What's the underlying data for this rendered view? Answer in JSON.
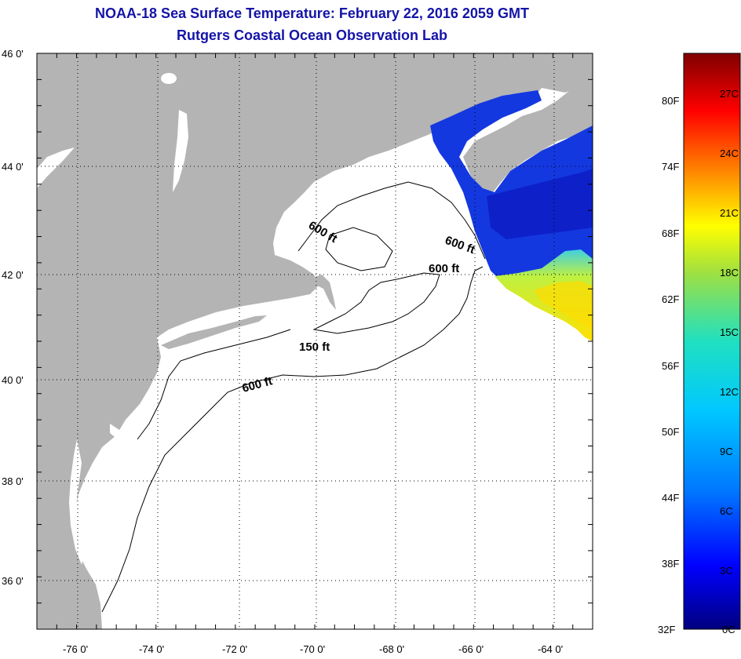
{
  "title": {
    "line1": "NOAA-18 Sea Surface Temperature:  February 22, 2016 2059 GMT",
    "line2": "Rutgers Coastal Ocean Observation Lab"
  },
  "map": {
    "lon_range": [
      -77,
      -63
    ],
    "lat_range": [
      35,
      46
    ],
    "lat_labels": [
      "46 0'",
      "44 0'",
      "42 0'",
      "40 0'",
      "38 0'",
      "36 0'"
    ],
    "lon_labels": [
      "-76 0'",
      "-74 0'",
      "-72 0'",
      "-70 0'",
      "-68 0'",
      "-66 0'",
      "-64 0'"
    ],
    "contour_labels": [
      "600 ft",
      "600 ft",
      "600 ft",
      "150 ft",
      "600 ft"
    ],
    "colors": {
      "land": "#b4b4b4",
      "water": "#ffffff",
      "grid": "#000000"
    }
  },
  "colorbar": {
    "fahrenheit_labels": [
      "80F",
      "74F",
      "68F",
      "62F",
      "56F",
      "50F",
      "44F",
      "38F",
      "32F"
    ],
    "celsius_labels": [
      "27C",
      "24C",
      "21C",
      "18C",
      "15C",
      "12C",
      "9C",
      "6C",
      "3C",
      "0C"
    ],
    "range_celsius": [
      0,
      29
    ],
    "colors_bottom_to_top": [
      "#000080",
      "#0000ff",
      "#0080ff",
      "#00c8ff",
      "#20e0c0",
      "#a0e040",
      "#ffff00",
      "#ff8000",
      "#ff0000",
      "#800000"
    ]
  }
}
